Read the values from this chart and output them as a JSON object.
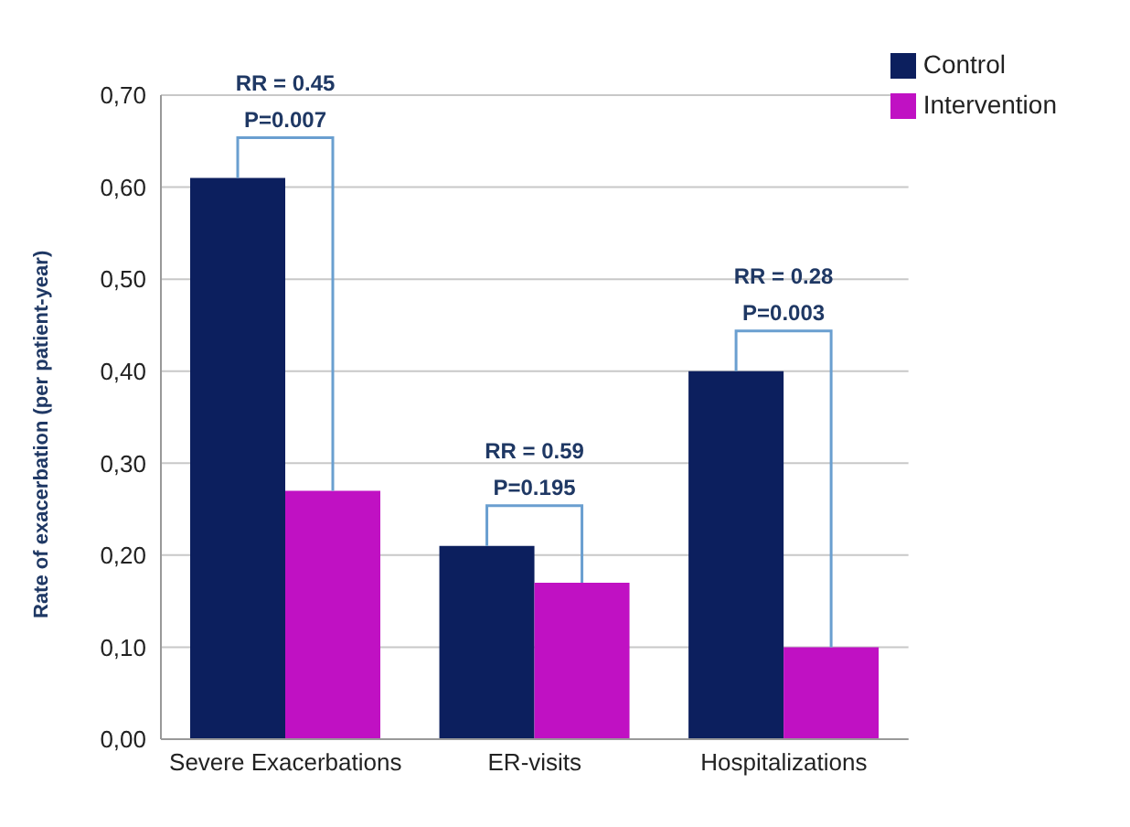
{
  "chart_data": {
    "type": "bar",
    "ylabel": "Rate of exacerbation (per patient-year)",
    "categories": [
      "Severe Exacerbations",
      "ER-visits",
      "Hospitalizations"
    ],
    "series": [
      {
        "name": "Control",
        "color": "#0c1f5e",
        "values": [
          0.61,
          0.21,
          0.4
        ]
      },
      {
        "name": "Intervention",
        "color": "#c011c3",
        "values": [
          0.27,
          0.17,
          0.1
        ]
      }
    ],
    "ylim": [
      0,
      0.7
    ],
    "yticks": [
      {
        "value": 0,
        "label": "0,00"
      },
      {
        "value": 0.1,
        "label": "0,10"
      },
      {
        "value": 0.2,
        "label": "0,20"
      },
      {
        "value": 0.3,
        "label": "0,30"
      },
      {
        "value": 0.4,
        "label": "0,40"
      },
      {
        "value": 0.5,
        "label": "0,50"
      },
      {
        "value": 0.6,
        "label": "0,60"
      },
      {
        "value": 0.7,
        "label": "0,70"
      }
    ],
    "grid": "y",
    "legend": "top right",
    "annotations": [
      "RR = 0.45",
      "P=0.007",
      "RR = 0.59",
      "P=0.195",
      "RR = 0.28",
      "P=0.003"
    ]
  }
}
